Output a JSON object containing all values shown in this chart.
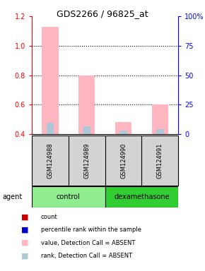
{
  "title": "GDS2266 / 96825_at",
  "samples": [
    "GSM124988",
    "GSM124989",
    "GSM124990",
    "GSM124991"
  ],
  "groups": [
    "control",
    "control",
    "dexamethasone",
    "dexamethasone"
  ],
  "group_colors": {
    "control": "#90EE90",
    "dexamethasone": "#32CD32"
  },
  "ylim_left": [
    0.4,
    1.2
  ],
  "ylim_right": [
    0,
    100
  ],
  "yticks_left": [
    0.4,
    0.6,
    0.8,
    1.0,
    1.2
  ],
  "yticks_right": [
    0,
    25,
    50,
    75,
    100
  ],
  "pink_bars": [
    1.13,
    0.8,
    0.48,
    0.6
  ],
  "blue_bars": [
    0.475,
    0.455,
    0.425,
    0.435
  ],
  "pink_base": 0.4,
  "blue_base": 0.4,
  "pink_color": "#FFB6C1",
  "blue_color": "#AFC8D8",
  "legend_items": [
    {
      "color": "#CC0000",
      "label": "count"
    },
    {
      "color": "#0000CC",
      "label": "percentile rank within the sample"
    },
    {
      "color": "#FFB6C1",
      "label": "value, Detection Call = ABSENT"
    },
    {
      "color": "#AFC8D8",
      "label": "rank, Detection Call = ABSENT"
    }
  ],
  "agent_label": "agent",
  "background_color": "#ffffff"
}
